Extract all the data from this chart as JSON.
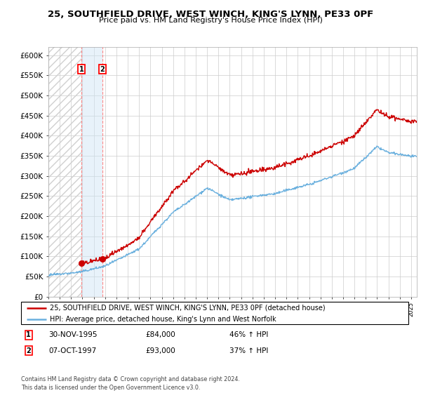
{
  "title": "25, SOUTHFIELD DRIVE, WEST WINCH, KING'S LYNN, PE33 0PF",
  "subtitle": "Price paid vs. HM Land Registry's House Price Index (HPI)",
  "ylabel_ticks": [
    "£0",
    "£50K",
    "£100K",
    "£150K",
    "£200K",
    "£250K",
    "£300K",
    "£350K",
    "£400K",
    "£450K",
    "£500K",
    "£550K",
    "£600K"
  ],
  "ytick_values": [
    0,
    50000,
    100000,
    150000,
    200000,
    250000,
    300000,
    350000,
    400000,
    450000,
    500000,
    550000,
    600000
  ],
  "xmin": 1993.0,
  "xmax": 2025.5,
  "ymin": 0,
  "ymax": 620000,
  "sale_dates": [
    1995.917,
    1997.771
  ],
  "sale_prices": [
    84000,
    93000
  ],
  "sale_labels": [
    "1",
    "2"
  ],
  "hpi_color": "#6ab0de",
  "price_color": "#cc0000",
  "sale_marker_color": "#cc0000",
  "sale_vline_color": "#ff6666",
  "legend_items": [
    "25, SOUTHFIELD DRIVE, WEST WINCH, KING'S LYNN, PE33 0PF (detached house)",
    "HPI: Average price, detached house, King's Lynn and West Norfolk"
  ],
  "table_data": [
    {
      "num": "1",
      "date": "30-NOV-1995",
      "price": "£84,000",
      "hpi": "46% ↑ HPI"
    },
    {
      "num": "2",
      "date": "07-OCT-1997",
      "price": "£93,000",
      "hpi": "37% ↑ HPI"
    }
  ],
  "footer": "Contains HM Land Registry data © Crown copyright and database right 2024.\nThis data is licensed under the Open Government Licence v3.0.",
  "grid_color": "#cccccc"
}
